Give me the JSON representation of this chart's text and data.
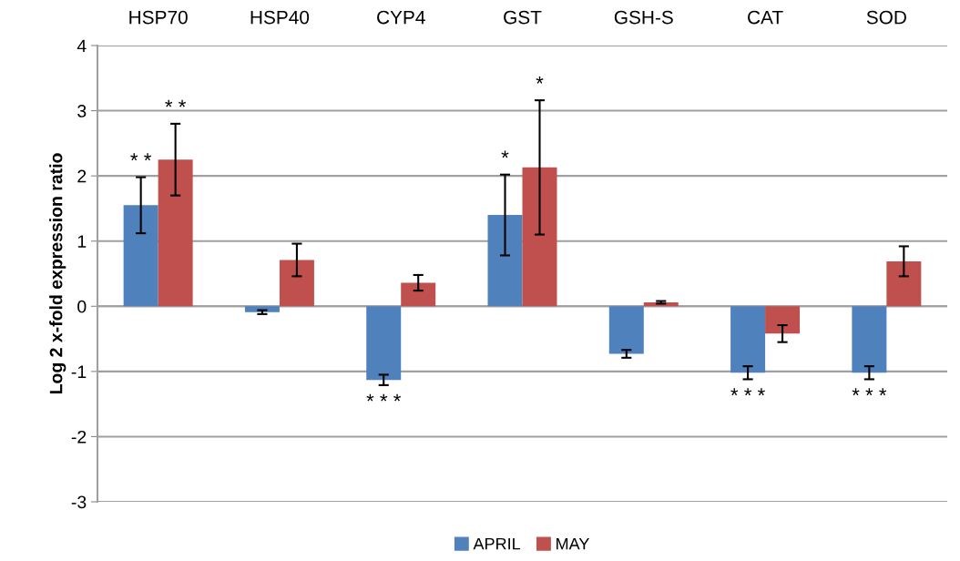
{
  "chart_data": {
    "type": "bar",
    "ylabel": "Log 2 x-fold expression ratio",
    "categories": [
      "HSP70",
      "HSP40",
      "CYP4",
      "GST",
      "GSH-S",
      "CAT",
      "SOD"
    ],
    "series": [
      {
        "name": "APRIL",
        "color": "#4f81bd",
        "values": [
          1.55,
          -0.09,
          -1.13,
          1.4,
          -0.73,
          -1.02,
          -1.02
        ],
        "errors": [
          0.43,
          0.03,
          0.08,
          0.62,
          0.06,
          0.1,
          0.1
        ]
      },
      {
        "name": "MAY",
        "color": "#c0504d",
        "values": [
          2.25,
          0.71,
          0.36,
          2.13,
          0.06,
          -0.42,
          0.69
        ],
        "errors": [
          0.55,
          0.25,
          0.12,
          1.03,
          0.02,
          0.13,
          0.23
        ]
      }
    ],
    "ylim": [
      -3,
      4
    ],
    "yticks": [
      -3,
      -2,
      -1,
      0,
      1,
      2,
      3,
      4
    ],
    "grid": "y",
    "legend": "bottom",
    "annotations": [
      "* *",
      "* *",
      "* * *",
      "*",
      "*",
      "* * *",
      "* * *"
    ]
  }
}
